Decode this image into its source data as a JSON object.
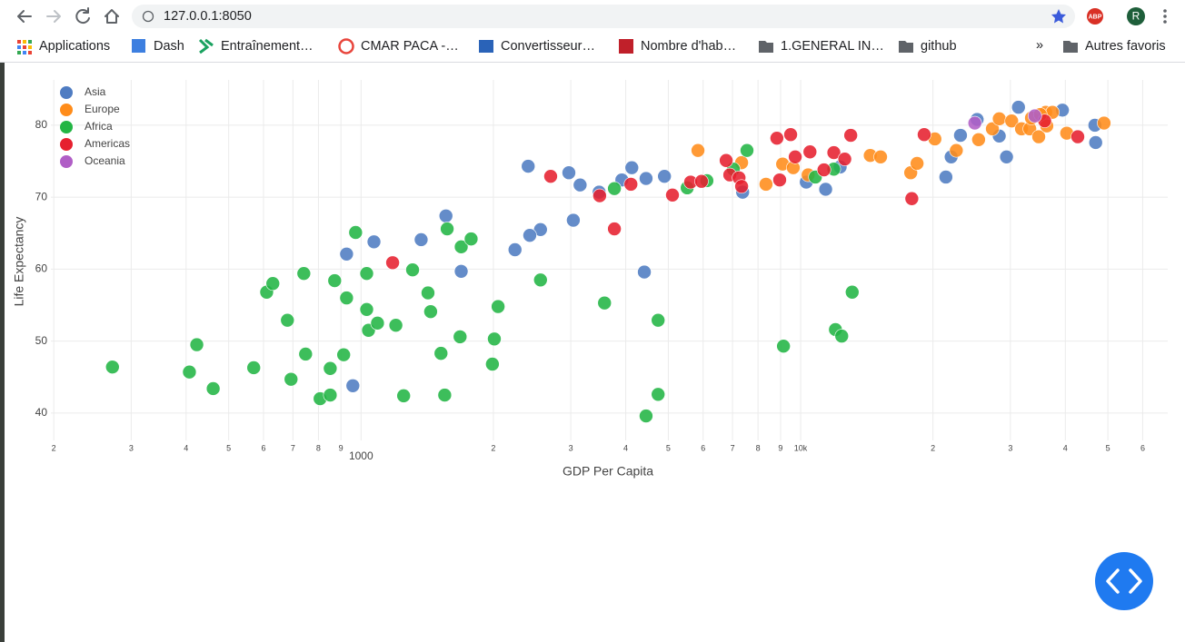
{
  "browser": {
    "url": "127.0.0.1:8050",
    "extension": "ABP",
    "avatar": "R",
    "bookmarks": [
      "Applications",
      "Dash",
      "Entraînement…",
      "CMAR PACA -…",
      "Convertisseur…",
      "Nombre d'hab…",
      "1.GENERAL IN…",
      "github"
    ],
    "overflow": "»",
    "other_bookmarks": "Autres favoris"
  },
  "chart_data": {
    "type": "scatter",
    "x_label": "GDP Per Capita",
    "y_label": "Life Expectancy",
    "xscale": "log",
    "xlim": [
      197,
      68400
    ],
    "ylim": [
      36.2,
      86.3
    ],
    "xticks": [
      {
        "value": 200,
        "label": "2"
      },
      {
        "value": 300,
        "label": "3"
      },
      {
        "value": 400,
        "label": "4"
      },
      {
        "value": 500,
        "label": "5"
      },
      {
        "value": 600,
        "label": "6"
      },
      {
        "value": 700,
        "label": "7"
      },
      {
        "value": 800,
        "label": "8"
      },
      {
        "value": 900,
        "label": "9"
      },
      1000,
      {
        "value": 2000,
        "label": "2"
      },
      {
        "value": 3000,
        "label": "3"
      },
      {
        "value": 4000,
        "label": "4"
      },
      {
        "value": 5000,
        "label": "5"
      },
      {
        "value": 6000,
        "label": "6"
      },
      {
        "value": 7000,
        "label": "7"
      },
      {
        "value": 8000,
        "label": "8"
      },
      {
        "value": 9000,
        "label": "9"
      },
      {
        "value": 10000,
        "label": "10k"
      },
      {
        "value": 20000,
        "label": "2"
      },
      {
        "value": 30000,
        "label": "3"
      },
      {
        "value": 40000,
        "label": "4"
      },
      {
        "value": 50000,
        "label": "5"
      },
      {
        "value": 60000,
        "label": "6"
      }
    ],
    "yticks": [
      40,
      50,
      60,
      70,
      80
    ],
    "grid": true,
    "legend": "top-left",
    "series": [
      {
        "name": "Asia",
        "color": "#4f7cc2",
        "x": [
          31300,
          39400,
          25200,
          46700,
          23100,
          28300,
          46900,
          22000,
          29400,
          21400,
          2400,
          2970,
          3150,
          3480,
          3920,
          4130,
          4450,
          4900,
          7380,
          10300,
          11400,
          12300,
          1560,
          3040,
          2560,
          2420,
          2240,
          1370,
          1070,
          927,
          1690,
          4410,
          958
        ],
        "values": [
          82.5,
          82.1,
          80.8,
          80.0,
          78.6,
          78.5,
          77.6,
          75.6,
          75.6,
          72.8,
          74.3,
          73.4,
          71.7,
          70.7,
          72.4,
          74.1,
          72.6,
          72.9,
          70.7,
          72.1,
          71.1,
          74.2,
          67.4,
          66.8,
          65.5,
          64.7,
          62.7,
          64.1,
          63.8,
          62.1,
          59.7,
          59.6,
          43.8
        ]
      },
      {
        "name": "Europe",
        "color": "#ff8c1a",
        "x": [
          5840,
          7340,
          8340,
          9100,
          9620,
          10400,
          14400,
          15200,
          17800,
          18400,
          20200,
          22600,
          25400,
          27300,
          28300,
          30200,
          31800,
          33200,
          34800,
          36100,
          37400,
          36300,
          40300,
          49000,
          33500,
          35100
        ],
        "values": [
          76.5,
          74.8,
          71.8,
          74.6,
          74.1,
          73.1,
          75.8,
          75.6,
          73.4,
          74.7,
          78.1,
          76.5,
          78.0,
          79.5,
          80.9,
          80.6,
          79.5,
          79.5,
          78.4,
          81.8,
          81.8,
          79.9,
          78.9,
          80.3,
          81.0,
          81.5
        ]
      },
      {
        "name": "Africa",
        "color": "#22b544",
        "x": [
          272,
          407,
          423,
          461,
          570,
          610,
          630,
          680,
          693,
          741,
          748,
          807,
          851,
          851,
          871,
          913,
          927,
          972,
          1030,
          1030,
          1040,
          1090,
          1200,
          1250,
          1310,
          1420,
          1440,
          1520,
          1550,
          1570,
          1680,
          1690,
          1780,
          1990,
          2010,
          2050,
          2560,
          3580,
          3770,
          4740,
          4740,
          4450,
          5520,
          6120,
          7030,
          7550,
          9140,
          10800,
          11900,
          12000,
          12400,
          13100
        ],
        "values": [
          46.4,
          45.7,
          49.5,
          43.4,
          46.3,
          56.8,
          58.0,
          52.9,
          44.7,
          59.4,
          48.2,
          42.0,
          46.2,
          42.5,
          58.4,
          48.1,
          56.0,
          65.1,
          59.4,
          54.4,
          51.5,
          52.5,
          52.2,
          42.4,
          59.9,
          56.7,
          54.1,
          48.3,
          42.5,
          65.6,
          50.6,
          63.1,
          64.2,
          46.8,
          50.3,
          54.8,
          58.5,
          55.3,
          71.2,
          52.9,
          42.6,
          39.6,
          71.3,
          72.3,
          73.9,
          76.5,
          49.3,
          72.8,
          73.9,
          51.6,
          50.7,
          56.8
        ]
      },
      {
        "name": "Americas",
        "color": "#e6202f",
        "x": [
          1180,
          2700,
          3490,
          3770,
          4110,
          5110,
          5620,
          5950,
          6770,
          6900,
          7240,
          7340,
          8830,
          8960,
          9490,
          9720,
          10500,
          11300,
          11900,
          12600,
          13000,
          17900,
          19100,
          35900,
          42700
        ],
        "values": [
          60.9,
          72.9,
          70.2,
          65.6,
          71.8,
          70.3,
          72.1,
          72.2,
          75.1,
          73.1,
          72.7,
          71.5,
          78.2,
          72.4,
          78.7,
          75.6,
          76.3,
          73.8,
          76.2,
          75.3,
          78.6,
          69.8,
          78.7,
          80.6,
          78.4
        ]
      },
      {
        "name": "Oceania",
        "color": "#b05ec6",
        "x": [
          24900,
          34100
        ],
        "values": [
          80.3,
          81.3
        ]
      }
    ]
  }
}
